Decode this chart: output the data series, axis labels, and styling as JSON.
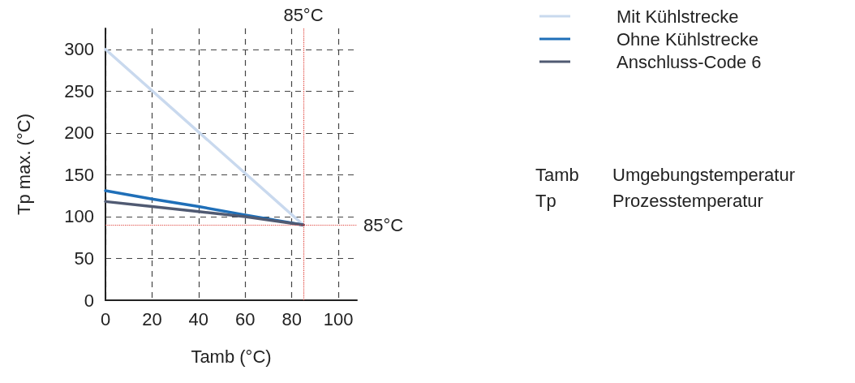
{
  "chart_data": {
    "type": "line",
    "xlabel": "Tamb (°C)",
    "ylabel": "Tp max. (°C)",
    "xlim": [
      0,
      108
    ],
    "xticks": [
      0,
      20,
      40,
      60,
      80,
      100
    ],
    "ylim": [
      0,
      325
    ],
    "yticks": [
      0,
      50,
      100,
      150,
      200,
      250,
      300
    ],
    "grid": true,
    "legend": "top right",
    "marker": "none",
    "line_style": "solid",
    "series": [
      {
        "name": "Mit Kühlstrecke",
        "color": "#c9d9ee",
        "x": [
          0,
          85
        ],
        "values": [
          300,
          90
        ]
      },
      {
        "name": "Ohne Kühlstrecke",
        "color": "#1f6fb8",
        "x": [
          0,
          20,
          40,
          60,
          85
        ],
        "values": [
          131,
          121,
          112,
          102,
          90
        ]
      },
      {
        "name": "Anschluss-Code 6",
        "color": "#505a72",
        "x": [
          0,
          20,
          40,
          60,
          85
        ],
        "values": [
          118,
          112,
          106,
          100,
          90
        ]
      }
    ],
    "ref_lines": [
      {
        "axis": "x",
        "value": 85,
        "label": "85°C",
        "color": "#e0443c",
        "line_style": "dotted"
      },
      {
        "axis": "y",
        "value": 90,
        "label": "85°C",
        "color": "#e0443c",
        "line_style": "dotted"
      }
    ],
    "annotations": [
      "Tamb",
      "Umgebungstemperatur",
      "Tp",
      "Prozesstemperatur"
    ]
  }
}
